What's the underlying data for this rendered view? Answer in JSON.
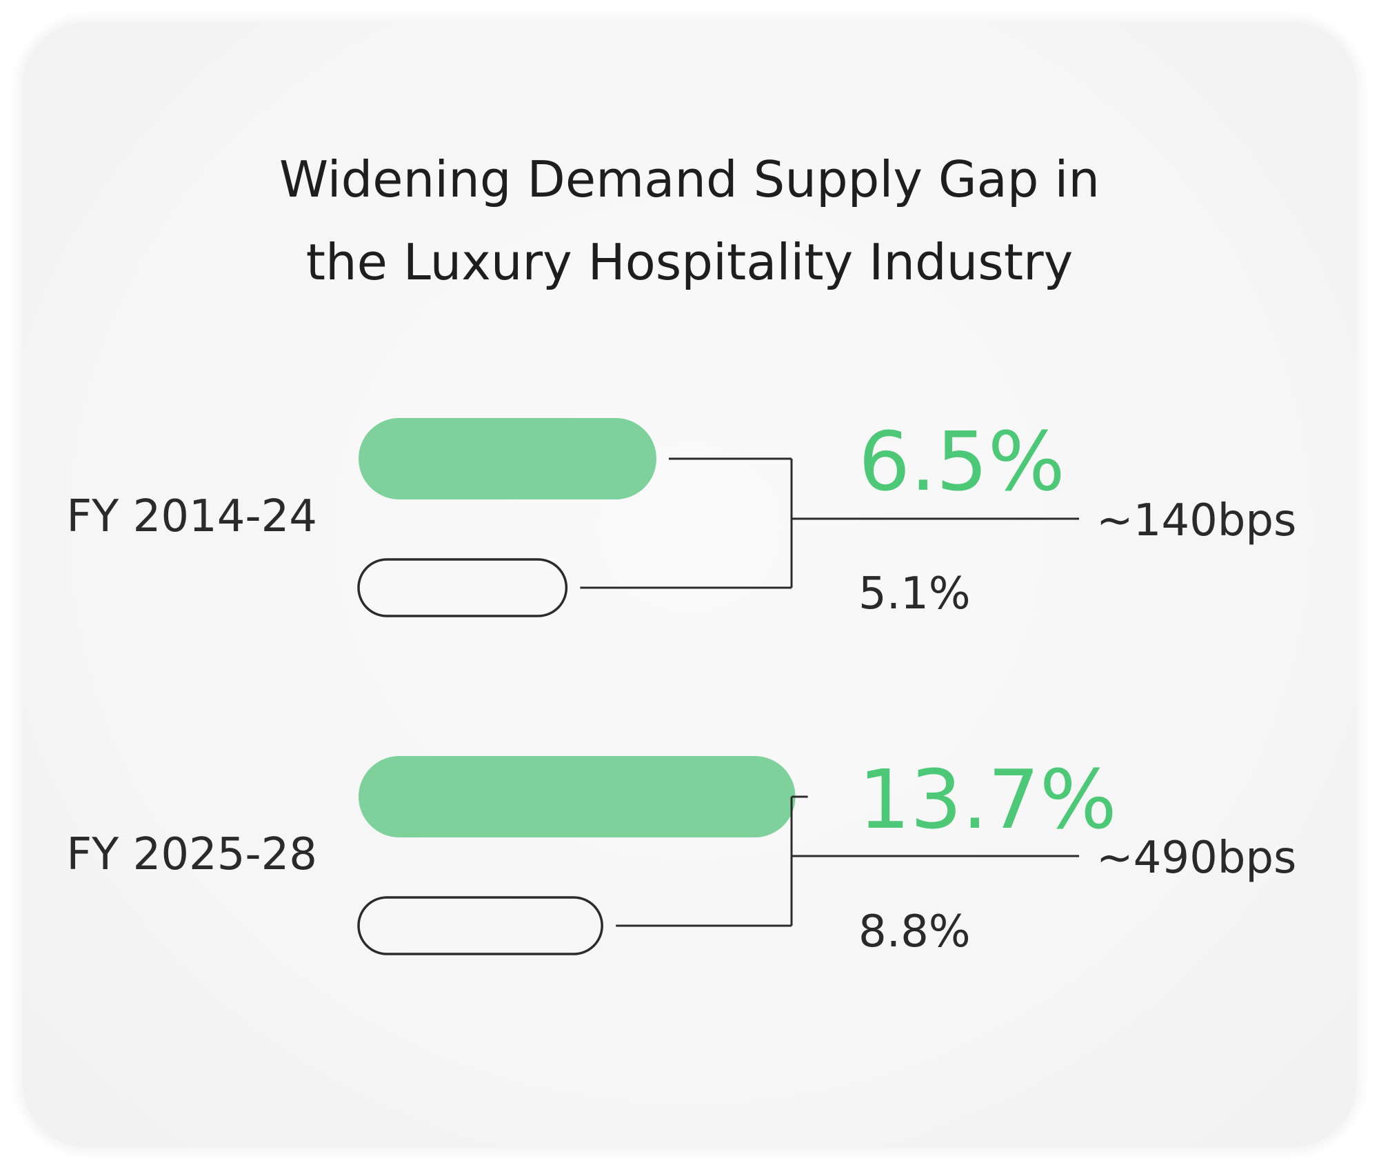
{
  "chart_data": {
    "type": "bar",
    "title_lines": [
      "Widening Demand Supply Gap in",
      "the Luxury Hospitality Industry"
    ],
    "categories": [
      "FY 2014-24",
      "FY 2025-28"
    ],
    "series": [
      {
        "values": [
          6.5,
          13.7
        ],
        "labels": [
          "6.5%",
          "13.7%"
        ],
        "style": "filled"
      },
      {
        "values": [
          5.1,
          8.8
        ],
        "labels": [
          "5.1%",
          "8.8%"
        ],
        "style": "outline"
      }
    ],
    "gaps": [
      "~140bps",
      "~490bps"
    ]
  },
  "colors": {
    "accent_bar": "#7fd19b",
    "accent_text": "#4cc877",
    "line": "#2b2b2b",
    "text": "#2a2a2a"
  }
}
